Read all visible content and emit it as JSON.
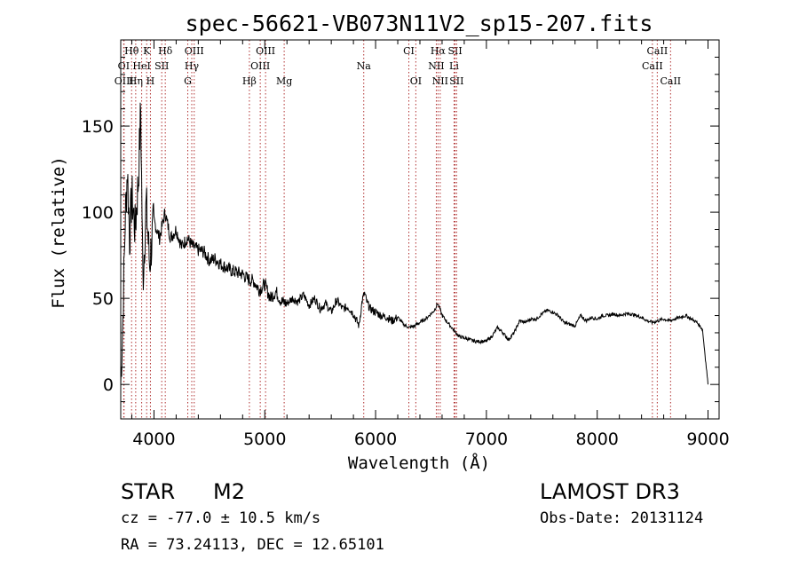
{
  "chart_data": {
    "type": "line",
    "title": "spec-56621-VB073N11V2_sp15-207.fits",
    "xlabel": "Wavelength (Å)",
    "ylabel": "Flux (relative)",
    "xlim": [
      3700,
      9100
    ],
    "ylim": [
      -20,
      200
    ],
    "xticks": [
      4000,
      5000,
      6000,
      7000,
      8000,
      9000
    ],
    "yticks": [
      0,
      50,
      100,
      150
    ],
    "grid": false,
    "series": [
      {
        "name": "flux",
        "x": [
          3700,
          3720,
          3740,
          3760,
          3780,
          3800,
          3830,
          3860,
          3880,
          3900,
          3930,
          3960,
          4000,
          4050,
          4100,
          4150,
          4200,
          4250,
          4300,
          4350,
          4400,
          4450,
          4500,
          4550,
          4600,
          4650,
          4700,
          4750,
          4800,
          4850,
          4900,
          4950,
          5000,
          5050,
          5100,
          5150,
          5200,
          5250,
          5300,
          5350,
          5400,
          5450,
          5500,
          5550,
          5600,
          5650,
          5700,
          5750,
          5800,
          5850,
          5880,
          5900,
          5920,
          5950,
          6000,
          6050,
          6100,
          6150,
          6200,
          6250,
          6300,
          6350,
          6400,
          6450,
          6500,
          6530,
          6560,
          6580,
          6600,
          6650,
          6700,
          6750,
          6800,
          6850,
          6900,
          6950,
          7000,
          7050,
          7100,
          7150,
          7200,
          7250,
          7300,
          7350,
          7400,
          7450,
          7500,
          7550,
          7600,
          7650,
          7700,
          7750,
          7800,
          7850,
          7900,
          7950,
          8000,
          8050,
          8100,
          8150,
          8200,
          8250,
          8300,
          8350,
          8400,
          8450,
          8500,
          8550,
          8600,
          8650,
          8700,
          8750,
          8800,
          8850,
          8900,
          8950,
          9000
        ],
        "y": [
          0,
          40,
          95,
          125,
          85,
          110,
          90,
          120,
          160,
          60,
          105,
          70,
          95,
          85,
          100,
          85,
          90,
          80,
          85,
          80,
          78,
          77,
          72,
          73,
          70,
          68,
          66,
          65,
          64,
          61,
          60,
          55,
          58,
          50,
          54,
          48,
          47,
          50,
          48,
          52,
          46,
          50,
          44,
          47,
          42,
          49,
          44,
          45,
          41,
          34,
          49,
          53,
          48,
          44,
          42,
          40,
          39,
          37,
          39,
          35,
          33,
          34,
          36,
          38,
          41,
          43,
          47,
          44,
          40,
          36,
          32,
          28,
          27,
          26,
          25,
          25,
          25,
          28,
          33,
          30,
          26,
          30,
          37,
          36,
          38,
          38,
          41,
          43,
          42,
          40,
          36,
          35,
          34,
          40,
          37,
          39,
          38,
          40,
          40,
          41,
          40,
          41,
          41,
          40,
          39,
          37,
          36,
          37,
          38,
          37,
          38,
          39,
          40,
          38,
          36,
          32,
          0
        ]
      }
    ],
    "lines": [
      {
        "label": "Hθ",
        "x": 3798,
        "row": 0
      },
      {
        "label": "K",
        "x": 3934,
        "row": 0
      },
      {
        "label": "Hδ",
        "x": 4102,
        "row": 0
      },
      {
        "label": "OIII",
        "x": 4363,
        "row": 0
      },
      {
        "label": "OIII",
        "x": 5007,
        "row": 0
      },
      {
        "label": "CI",
        "x": 6300,
        "row": 0
      },
      {
        "label": "Hα",
        "x": 6563,
        "row": 0
      },
      {
        "label": "SII",
        "x": 6717,
        "row": 0
      },
      {
        "label": "CaII",
        "x": 8542,
        "row": 0
      },
      {
        "label": "OI",
        "x": 3727,
        "row": 1
      },
      {
        "label": "HeI",
        "x": 3889,
        "row": 1
      },
      {
        "label": "SII",
        "x": 4070,
        "row": 1
      },
      {
        "label": "Hγ",
        "x": 4341,
        "row": 1
      },
      {
        "label": "OIII",
        "x": 4959,
        "row": 1
      },
      {
        "label": "Na",
        "x": 5893,
        "row": 1
      },
      {
        "label": "NII",
        "x": 6548,
        "row": 1
      },
      {
        "label": "Li",
        "x": 6708,
        "row": 1
      },
      {
        "label": "CaII",
        "x": 8498,
        "row": 1
      },
      {
        "label": "OIII",
        "x": 3730,
        "row": 2
      },
      {
        "label": "Hη",
        "x": 3835,
        "row": 2
      },
      {
        "label": "H",
        "x": 3968,
        "row": 2
      },
      {
        "label": "G",
        "x": 4305,
        "row": 2
      },
      {
        "label": "Hβ",
        "x": 4861,
        "row": 2
      },
      {
        "label": "Mg",
        "x": 5175,
        "row": 2
      },
      {
        "label": "OI",
        "x": 6363,
        "row": 2
      },
      {
        "label": "NII",
        "x": 6583,
        "row": 2
      },
      {
        "label": "SII",
        "x": 6731,
        "row": 2
      },
      {
        "label": "CaII",
        "x": 8662,
        "row": 2
      }
    ]
  },
  "info": {
    "object_class": "STAR",
    "subclass": "M2",
    "survey": "LAMOST DR3",
    "redshift": "cz = -77.0 ± 10.5 km/s",
    "obs_date": "Obs-Date: 20131124",
    "coords": "RA =  73.24113, DEC =  12.65101"
  }
}
